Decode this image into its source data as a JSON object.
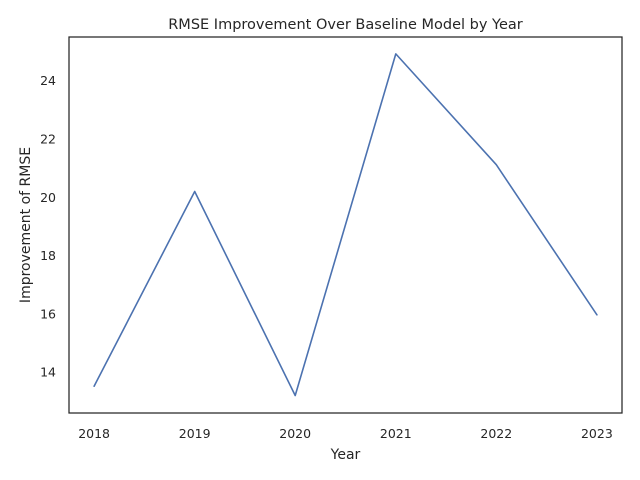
{
  "chart_data": {
    "type": "line",
    "title": "RMSE Improvement Over Baseline Model by Year",
    "xlabel": "Year",
    "ylabel": "Improvement of RMSE",
    "x": [
      2018,
      2019,
      2020,
      2021,
      2022,
      2023
    ],
    "series": [
      {
        "values": [
          13.52,
          20.2,
          13.2,
          24.92,
          21.12,
          15.97
        ],
        "color": "#4c72b0"
      }
    ],
    "xticks": [
      "2018",
      "2019",
      "2020",
      "2021",
      "2022",
      "2023"
    ],
    "yticks": [
      "14",
      "16",
      "18",
      "20",
      "22",
      "24"
    ],
    "xlim": [
      2017.75,
      2023.25
    ],
    "ylim": [
      12.6,
      25.5
    ],
    "grid": false,
    "legend": "none"
  }
}
